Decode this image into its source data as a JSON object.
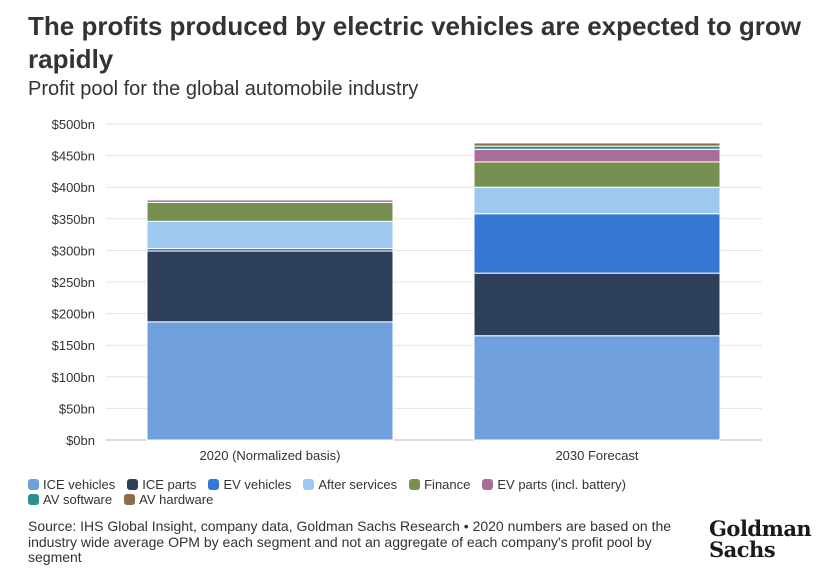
{
  "header": {
    "title": "The profits produced by electric vehicles are expected to grow rapidly",
    "subtitle": "Profit pool for the global automobile industry"
  },
  "footer": {
    "source": "Source: IHS Global Insight, company data, Goldman Sachs Research • 2020 numbers are based on the industry wide average OPM by each segment and not an aggregate of each company's profit pool by segment",
    "logo_line1": "Goldman",
    "logo_line2": "Sachs"
  },
  "legend": {
    "row1": [
      "ICE vehicles",
      "ICE parts",
      "EV vehicles",
      "After services",
      "Finance",
      "EV parts (incl. battery)"
    ],
    "row2": [
      "AV software",
      "AV hardware"
    ]
  },
  "chart_data": {
    "type": "bar",
    "stacked": true,
    "categories": [
      "2020 (Normalized basis)",
      "2030 Forecast"
    ],
    "y_ticks": [
      "$0bn",
      "$50bn",
      "$100bn",
      "$150bn",
      "$200bn",
      "$250bn",
      "$300bn",
      "$350bn",
      "$400bn",
      "$450bn",
      "$500bn"
    ],
    "ylim": [
      0,
      500
    ],
    "grid": true,
    "legend_position": "bottom",
    "series": [
      {
        "name": "ICE vehicles",
        "color": "#6f9fdc",
        "values": [
          187,
          165
        ]
      },
      {
        "name": "ICE parts",
        "color": "#2e3f5a",
        "values": [
          112,
          99
        ]
      },
      {
        "name": "EV vehicles",
        "color": "#3577d4",
        "values": [
          4,
          94
        ]
      },
      {
        "name": "After services",
        "color": "#9ec8f0",
        "values": [
          43,
          42
        ]
      },
      {
        "name": "Finance",
        "color": "#788f52",
        "values": [
          30,
          40
        ]
      },
      {
        "name": "EV parts (incl. battery)",
        "color": "#a86d99",
        "values": [
          4,
          20
        ]
      },
      {
        "name": "AV software",
        "color": "#2b8f8f",
        "values": [
          0,
          5
        ]
      },
      {
        "name": "AV hardware",
        "color": "#8c6c4c",
        "values": [
          1,
          5
        ]
      }
    ]
  }
}
